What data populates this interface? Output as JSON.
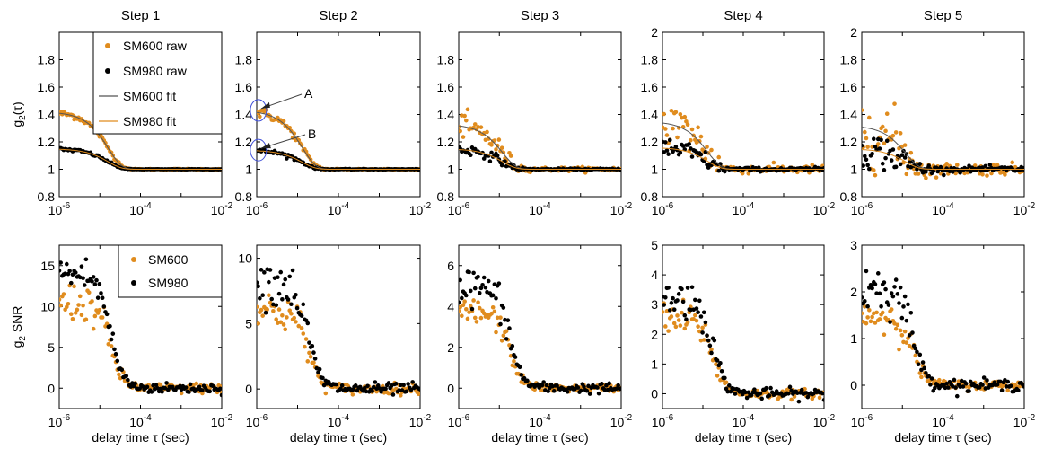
{
  "colors": {
    "sm600": "#E08C1E",
    "sm980": "#000000",
    "annotation": "#3F4FD8"
  },
  "chart_data": [
    {
      "type": "scatter",
      "title": "Step 1",
      "row": "g2",
      "ylabel": "g2(τ)",
      "yticks": [
        0.8,
        1,
        1.2,
        1.4,
        1.6,
        1.8
      ],
      "ylim": [
        0.8,
        2
      ],
      "xscale": "log",
      "xlim": [
        1e-06,
        0.01
      ],
      "xticks": [
        "10",
        "10",
        "10"
      ],
      "xtick_exp": [
        "-6",
        "-4",
        "-2"
      ],
      "xlabel": "",
      "sm600": {
        "g2_0": 1.42,
        "tau_c": 1.6e-05,
        "noise": 0.012
      },
      "sm980": {
        "g2_0": 1.15,
        "tau_c": 1.6e-05,
        "noise": 0.006
      },
      "legend": [
        "SM600 raw",
        "SM980 raw",
        "SM600 fit",
        "SM980 fit"
      ]
    },
    {
      "type": "scatter",
      "title": "Step 2",
      "row": "g2",
      "ylabel": "",
      "yticks": [
        0.8,
        1,
        1.2,
        1.4,
        1.6,
        1.8
      ],
      "ylim": [
        0.8,
        2
      ],
      "xscale": "log",
      "xlim": [
        1e-06,
        0.01
      ],
      "xticks": [
        "10",
        "10",
        "10"
      ],
      "xtick_exp": [
        "-6",
        "-4",
        "-2"
      ],
      "xlabel": "",
      "sm600": {
        "g2_0": 1.43,
        "tau_c": 1.3e-05,
        "noise": 0.018
      },
      "sm980": {
        "g2_0": 1.14,
        "tau_c": 1.3e-05,
        "noise": 0.008
      },
      "annotations": [
        "A",
        "B"
      ]
    },
    {
      "type": "scatter",
      "title": "Step 3",
      "row": "g2",
      "ylabel": "",
      "yticks": [
        0.8,
        1,
        1.2,
        1.4,
        1.6,
        1.8
      ],
      "ylim": [
        0.8,
        2
      ],
      "xscale": "log",
      "xlim": [
        1e-06,
        0.01
      ],
      "xticks": [
        "10",
        "10",
        "10"
      ],
      "xtick_exp": [
        "-6",
        "-4",
        "-2"
      ],
      "xlabel": "",
      "sm600": {
        "g2_0": 1.33,
        "tau_c": 1.2e-05,
        "noise": 0.05
      },
      "sm980": {
        "g2_0": 1.15,
        "tau_c": 1.2e-05,
        "noise": 0.02
      }
    },
    {
      "type": "scatter",
      "title": "Step 4",
      "row": "g2",
      "ylabel": "",
      "yticks": [
        0.8,
        1,
        1.2,
        1.4,
        1.6,
        1.8,
        2
      ],
      "ylim": [
        0.8,
        2
      ],
      "xscale": "log",
      "xlim": [
        1e-06,
        0.01
      ],
      "xticks": [
        "10",
        "10",
        "10"
      ],
      "xtick_exp": [
        "-6",
        "-4",
        "-2"
      ],
      "xlabel": "",
      "sm600": {
        "g2_0": 1.35,
        "tau_c": 1.3e-05,
        "noise": 0.1
      },
      "sm980": {
        "g2_0": 1.16,
        "tau_c": 1.3e-05,
        "noise": 0.045
      }
    },
    {
      "type": "scatter",
      "title": "Step 5",
      "row": "g2",
      "ylabel": "",
      "yticks": [
        0.8,
        1,
        1.2,
        1.4,
        1.6,
        1.8,
        2
      ],
      "ylim": [
        0.8,
        2
      ],
      "xscale": "log",
      "xlim": [
        1e-06,
        0.01
      ],
      "xticks": [
        "10",
        "10",
        "10"
      ],
      "xtick_exp": [
        "-6",
        "-4",
        "-2"
      ],
      "xlabel": "",
      "sm600": {
        "g2_0": 1.32,
        "tau_c": 1.2e-05,
        "noise": 0.14
      },
      "sm980": {
        "g2_0": 1.15,
        "tau_c": 1.2e-05,
        "noise": 0.07
      }
    },
    {
      "type": "scatter",
      "title": "",
      "row": "snr",
      "ylabel": "g2 SNR",
      "yticks": [
        0,
        5,
        10,
        15
      ],
      "ylim": [
        -2.5,
        17.5
      ],
      "xscale": "log",
      "xlim": [
        1e-06,
        0.01
      ],
      "xticks": [
        "10",
        "10",
        "10"
      ],
      "xtick_exp": [
        "-6",
        "-4",
        "-2"
      ],
      "xlabel": "delay time τ (sec)",
      "sm600": {
        "plateau": 10.5,
        "noise": 1.2
      },
      "sm980": {
        "plateau": 14,
        "noise": 1.2
      },
      "legend": [
        "SM600",
        "SM980"
      ]
    },
    {
      "type": "scatter",
      "title": "",
      "row": "snr",
      "ylabel": "",
      "yticks": [
        0,
        5,
        10
      ],
      "ylim": [
        -1.5,
        11
      ],
      "xscale": "log",
      "xlim": [
        1e-06,
        0.01
      ],
      "xticks": [
        "10",
        "10",
        "10"
      ],
      "xtick_exp": [
        "-6",
        "-4",
        "-2"
      ],
      "xlabel": "delay time τ (sec)",
      "sm600": {
        "plateau": 6,
        "noise": 0.8
      },
      "sm980": {
        "plateau": 8.2,
        "noise": 0.9
      }
    },
    {
      "type": "scatter",
      "title": "",
      "row": "snr",
      "ylabel": "",
      "yticks": [
        0,
        2,
        4,
        6
      ],
      "ylim": [
        -1,
        7
      ],
      "xscale": "log",
      "xlim": [
        1e-06,
        0.01
      ],
      "xticks": [
        "10",
        "10",
        "10"
      ],
      "xtick_exp": [
        "-6",
        "-4",
        "-2"
      ],
      "xlabel": "delay time τ (sec)",
      "sm600": {
        "plateau": 3.7,
        "noise": 0.35
      },
      "sm980": {
        "plateau": 5,
        "noise": 0.5
      }
    },
    {
      "type": "scatter",
      "title": "",
      "row": "snr",
      "ylabel": "",
      "yticks": [
        0,
        1,
        2,
        3,
        4,
        5
      ],
      "ylim": [
        -0.5,
        5
      ],
      "xscale": "log",
      "xlim": [
        1e-06,
        0.01
      ],
      "xticks": [
        "10",
        "10",
        "10"
      ],
      "xtick_exp": [
        "-6",
        "-4",
        "-2"
      ],
      "xlabel": "delay time τ (sec)",
      "sm600": {
        "plateau": 2.5,
        "noise": 0.3
      },
      "sm980": {
        "plateau": 3.2,
        "noise": 0.35
      }
    },
    {
      "type": "scatter",
      "title": "",
      "row": "snr",
      "ylabel": "",
      "yticks": [
        0,
        1,
        2,
        3
      ],
      "ylim": [
        -0.5,
        3
      ],
      "xscale": "log",
      "xlim": [
        1e-06,
        0.01
      ],
      "xticks": [
        "10",
        "10",
        "10"
      ],
      "xtick_exp": [
        "-6",
        "-4",
        "-2"
      ],
      "xlabel": "delay time τ (sec)",
      "sm600": {
        "plateau": 1.5,
        "noise": 0.2
      },
      "sm980": {
        "plateau": 2.1,
        "noise": 0.25
      }
    }
  ]
}
